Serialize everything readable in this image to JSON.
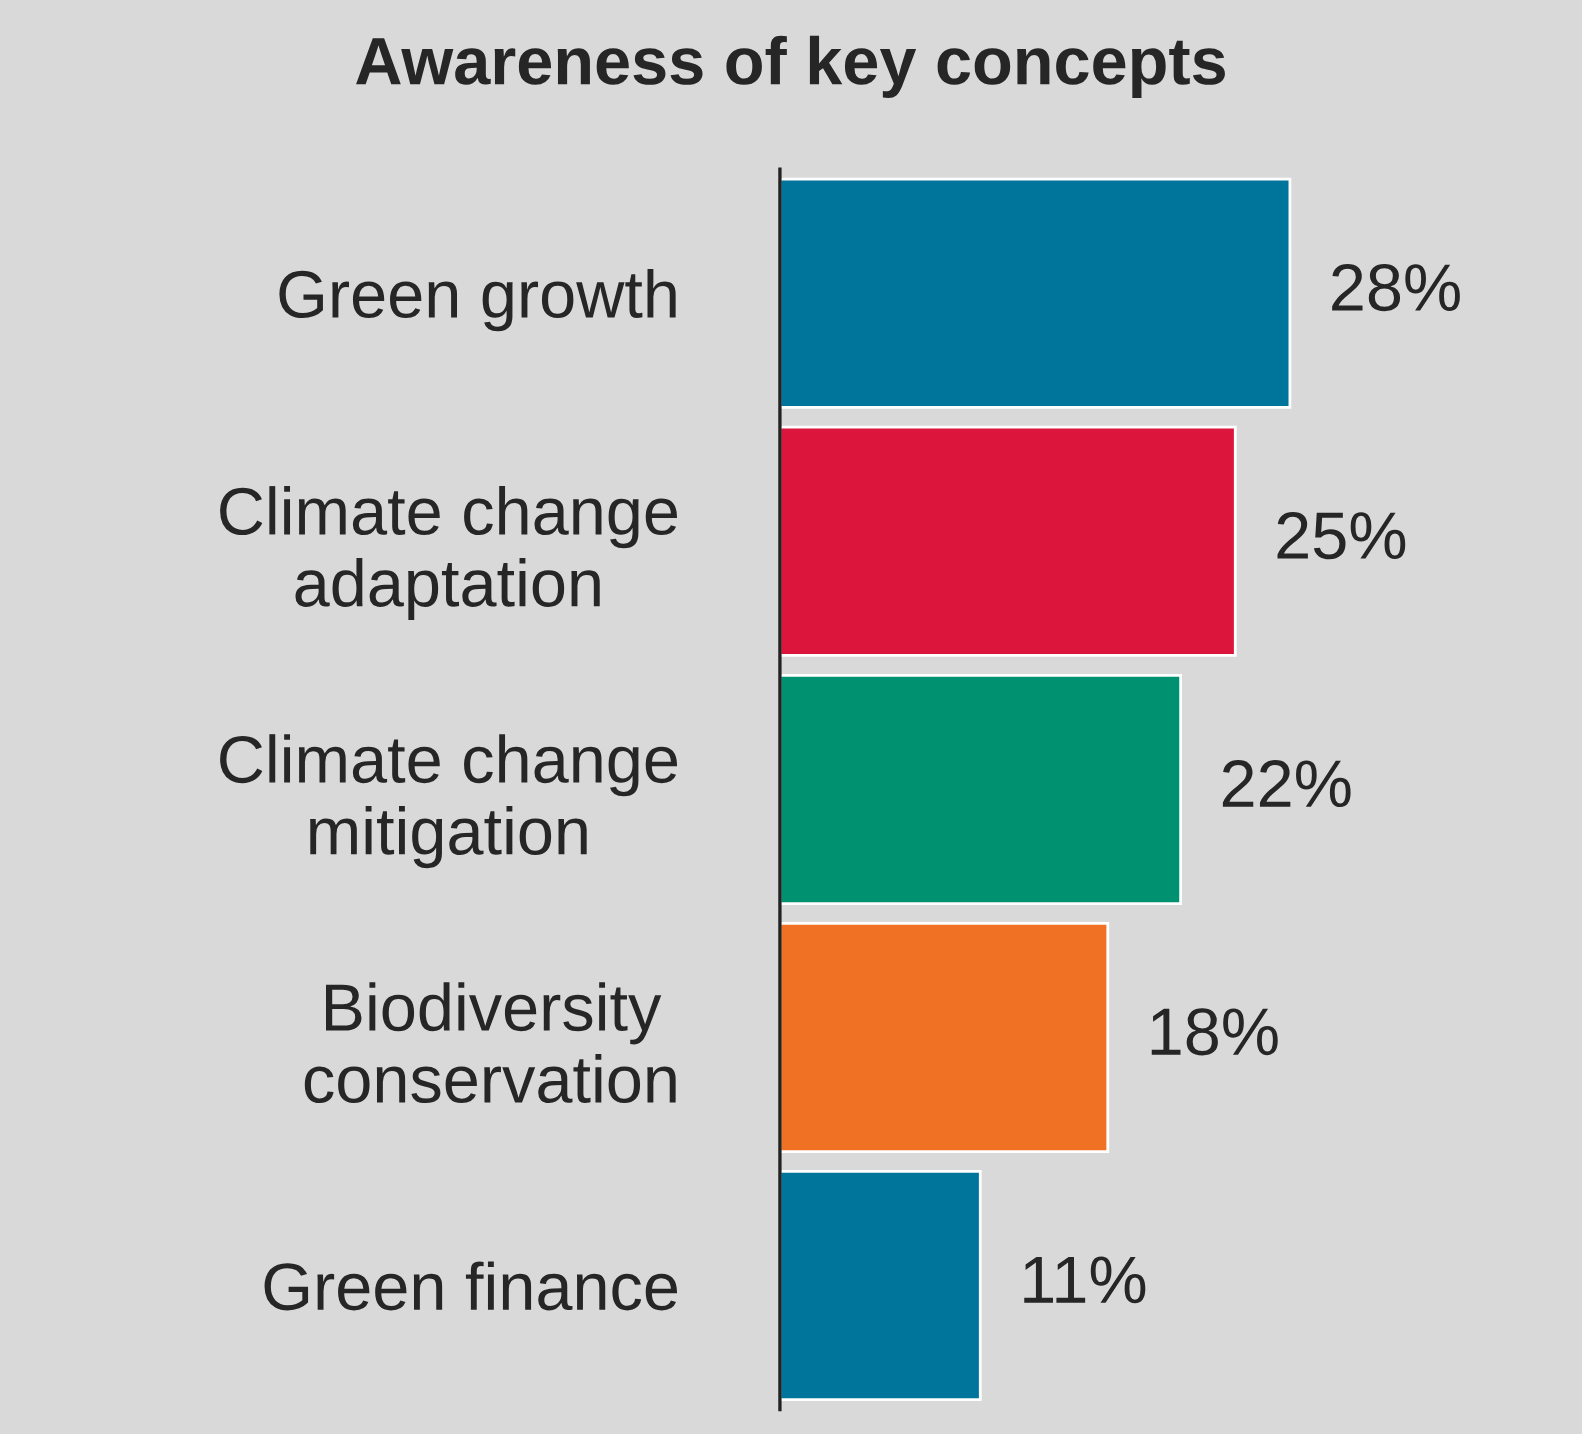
{
  "chart_data": {
    "type": "bar",
    "orientation": "horizontal",
    "title": "Awareness of key concepts",
    "categories": [
      "Green growth",
      "Climate change\nadaptation",
      "Climate change\nmitigation",
      "Biodiversity\nconservation",
      "Green finance"
    ],
    "values": [
      28,
      25,
      22,
      18,
      11
    ],
    "colors": [
      "#00759b",
      "#dc153c",
      "#009171",
      "#f07124",
      "#00759b"
    ],
    "value_labels": [
      "28%",
      "25%",
      "22%",
      "18%",
      "11%"
    ],
    "grid": false,
    "legend": false
  }
}
